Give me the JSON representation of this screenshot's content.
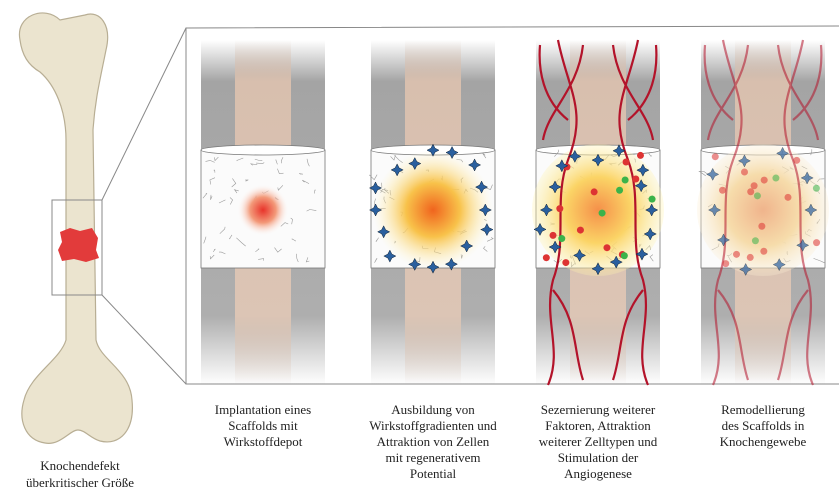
{
  "femur": {
    "caption": [
      "Knochendefekt",
      "überkritischer Größe"
    ]
  },
  "stages": [
    {
      "caption": [
        "Implantation eines",
        "Scaffolds mit",
        "Wirkstoffdepot"
      ]
    },
    {
      "caption": [
        "Ausbildung von",
        "Wirkstoffgradienten und",
        "Attraktion von Zellen",
        "mit regenerativem",
        "Potential"
      ]
    },
    {
      "caption": [
        "Sezernierung weiterer",
        "Faktoren, Attraktion",
        "weiterer Zelltypen und",
        "Stimulation der",
        "Angiogenese"
      ]
    },
    {
      "caption": [
        "Remodellierung",
        "des Scaffolds in",
        "Knochengewebe"
      ]
    }
  ]
}
